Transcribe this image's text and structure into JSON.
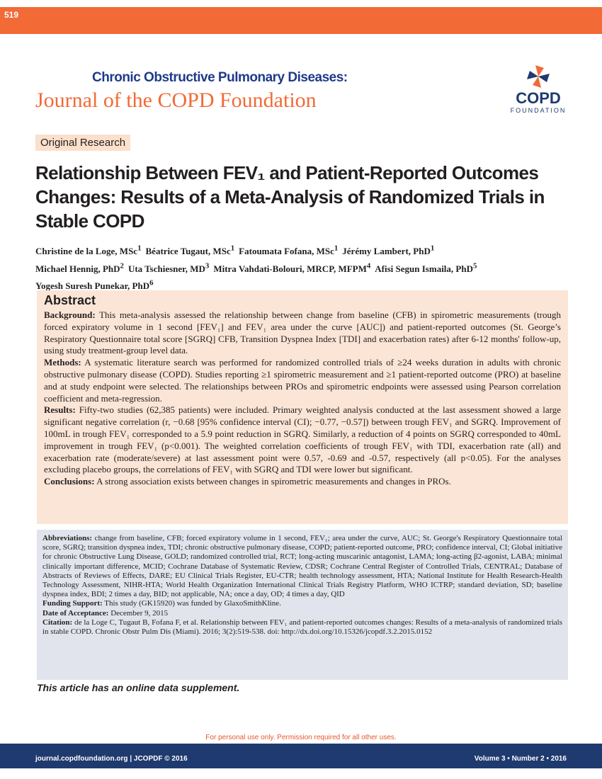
{
  "page_number": "519",
  "header": {
    "journal_line1": "Chronic Obstructive Pulmonary Diseases:",
    "journal_line2": "Journal of the COPD Foundation",
    "logo_text": "COPD",
    "logo_sub": "FOUNDATION"
  },
  "section_label": "Original Research",
  "title": "Relationship Between FEV₁ and Patient-Reported Outcomes Changes: Results of a Meta-Analysis of Randomized Trials in Stable COPD",
  "authors": [
    {
      "name": "Christine de la Loge, MSc",
      "aff": "1"
    },
    {
      "name": "Béatrice Tugaut, MSc",
      "aff": "1"
    },
    {
      "name": "Fatoumata Fofana, MSc",
      "aff": "1"
    },
    {
      "name": "Jérémy Lambert, PhD",
      "aff": "1"
    },
    {
      "name": "Michael Hennig, PhD",
      "aff": "2"
    },
    {
      "name": "Uta Tschiesner, MD",
      "aff": "3"
    },
    {
      "name": "Mitra Vahdati-Bolouri, MRCP, MFPM",
      "aff": "4"
    },
    {
      "name": "Afisi Segun Ismaila, PhD",
      "aff": "5"
    },
    {
      "name": "Yogesh Suresh Punekar, PhD",
      "aff": "6"
    }
  ],
  "abstract": {
    "heading": "Abstract",
    "paragraphs": [
      {
        "label": "Background:",
        "text": "This meta-analysis assessed the relationship between change from baseline (CFB) in spirometric measurements (trough forced expiratory volume in 1 second [FEV₁] and FEV₁ area under the curve [AUC]) and patient-reported outcomes (St. George’s Respiratory Questionnaire total score [SGRQ] CFB, Transition Dyspnea Index [TDI] and exacerbation rates) after 6-12 months' follow-up, using study treatment-group level data."
      },
      {
        "label": "Methods:",
        "text": "A systematic literature search was performed for randomized controlled trials of ≥24 weeks duration in adults with chronic obstructive pulmonary disease (COPD). Studies reporting ≥1 spirometric measurement and ≥1 patient-reported outcome (PRO) at baseline and at study endpoint were selected. The relationships between PROs and spirometric endpoints were assessed using Pearson correlation coefficient and meta-regression."
      },
      {
        "label": "Results:",
        "text": "Fifty-two studies (62,385 patients) were included. Primary weighted analysis conducted at the last assessment showed a large significant negative correlation (r, −0.68 [95% confidence interval (CI); −0.77, −0.57]) between trough FEV₁ and SGRQ. Improvement of 100mL in trough FEV₁ corresponded to a 5.9 point reduction in SGRQ. Similarly, a reduction of 4 points on SGRQ corresponded to 40mL improvement in trough FEV₁ (p<0.001). The weighted correlation coefficients of trough FEV₁ with TDI, exacerbation rate (all) and exacerbation rate (moderate/severe) at last assessment point were 0.57, -0.69 and -0.57, respectively (all p<0.05). For the analyses excluding placebo groups, the correlations of FEV₁ with SGRQ and TDI were lower but significant."
      },
      {
        "label": "Conclusions:",
        "text": "A strong association exists between changes in spirometric measurements and changes in PROs."
      }
    ]
  },
  "abbreviations": {
    "label": "Abbreviations:",
    "text": "change from baseline, CFB; forced expiratory volume in 1 second, FEV₁; area under the curve, AUC; St. George's Respiratory Questionnaire total score, SGRQ; transition dyspnea index, TDI; chronic obstructive pulmonary disease, COPD; patient-reported outcome, PRO; confidence interval, CI; Global initiative for chronic Obstructive Lung Disease, GOLD; randomized controlled trial, RCT; long-acting muscarinic antagonist, LAMA; long-acting β2-agonist, LABA; minimal clinically important difference, MCID; Cochrane Database of Systematic Review, CDSR; Cochrane Central Register of Controlled Trials, CENTRAL; Database of Abstracts of Reviews of Effects, DARE; EU Clinical Trials Register, EU-CTR; health technology assessment, HTA; National Institute for Health Research-Health Technology Assessment, NIHR-HTA; World Health Organization International Clinical Trials Registry Platform, WHO ICTRP; standard deviation, SD; baseline dyspnea index, BDI; 2 times a day, BID; not applicable, NA; once a day, OD; 4 times a day, QID"
  },
  "funding": {
    "label": "Funding Support:",
    "text": "This study (GK15920) was funded by GlaxoSmithKline."
  },
  "acceptance": {
    "label": "Date of Acceptance:",
    "text": "December 9, 2015"
  },
  "citation": {
    "label": "Citation:",
    "text": "de la Loge C, Tugaut B, Fofana F, et al. Relationship between FEV₁ and patient-reported outcomes changes: Results of a meta-analysis of randomized trials in stable COPD. Chronic Obstr Pulm Dis (Miami). 2016; 3(2):519-538. doi: http://dx.doi.org/10.15326/jcopdf.3.2.2015.0152"
  },
  "supplement_note": "This article has an online data supplement.",
  "footer": {
    "notice": "For personal use only. Permission required for all other uses.",
    "left": "journal.copdfoundation.org | JCOPDF © 2016",
    "right": "Volume 3 • Number 2 • 2016"
  }
}
